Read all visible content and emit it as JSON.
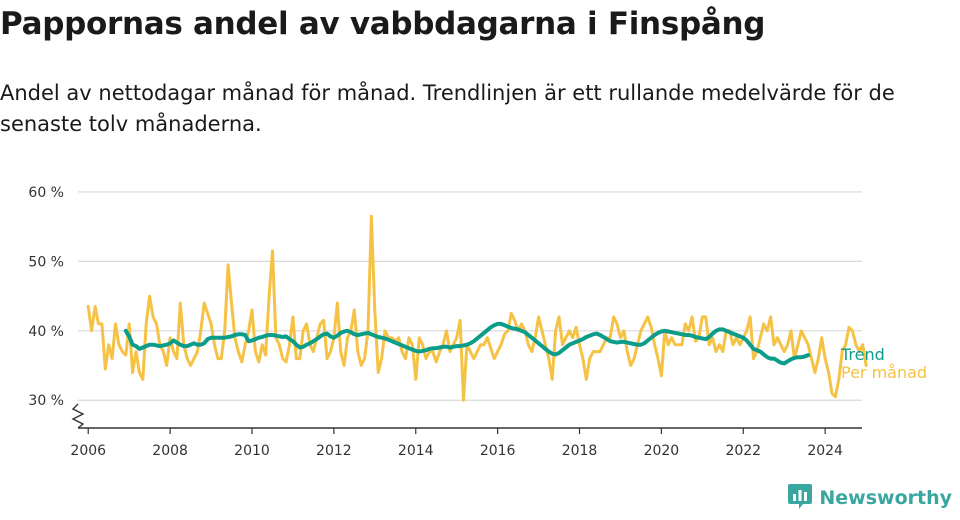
{
  "header": {
    "title": "Pappornas andel av vabbdagarna i Finspång",
    "subtitle": "Andel av nettodagar månad för månad. Trendlinjen är ett rullande medelvärde för de senaste tolv månaderna."
  },
  "brand": {
    "name": "Newsworthy",
    "icon": "newsworthy-logo-icon"
  },
  "colors": {
    "monthly": "#f6c245",
    "trend": "#0b9d8a",
    "grid": "#d9d9d9",
    "axis": "#333333"
  },
  "chart_data": {
    "type": "line",
    "xlabel": "",
    "ylabel": "",
    "ylim": [
      26,
      61
    ],
    "xlim": [
      2005.75,
      2024.9
    ],
    "yticks": [
      30,
      40,
      50,
      60
    ],
    "ytick_labels": [
      "30 %",
      "40 %",
      "50 %",
      "60 %"
    ],
    "xticks": [
      2006,
      2008,
      2010,
      2012,
      2014,
      2016,
      2018,
      2020,
      2022,
      2024
    ],
    "xtick_labels": [
      "2006",
      "2008",
      "2010",
      "2012",
      "2014",
      "2016",
      "2018",
      "2020",
      "2022",
      "2024"
    ],
    "grid": "horizontal",
    "axis_break": true,
    "series": [
      {
        "name": "Per månad",
        "x_start": "2006-01",
        "frequency": "monthly",
        "values": [
          43.5,
          40,
          43.5,
          41,
          41,
          34.5,
          38,
          36,
          41,
          38,
          37,
          36.5,
          41,
          34,
          37,
          34,
          33,
          41,
          45,
          42,
          41,
          38,
          37,
          35,
          39,
          37,
          36,
          44,
          38,
          36,
          35,
          36,
          37,
          40,
          44,
          42.5,
          41,
          38,
          36,
          36,
          40,
          49.5,
          44,
          39,
          37,
          35.5,
          38,
          40,
          43,
          37,
          35.5,
          38,
          36.5,
          45,
          51.5,
          39,
          38,
          36,
          35.5,
          38,
          42,
          36,
          36,
          40,
          41,
          38,
          37,
          39,
          41,
          41.5,
          36,
          37,
          39,
          44,
          37,
          35,
          39,
          40,
          43,
          37,
          35,
          36,
          40,
          56.5,
          43,
          34,
          36,
          40,
          39,
          39,
          38.5,
          39,
          37,
          36,
          39,
          38,
          33,
          39,
          38,
          36,
          37,
          37,
          35.5,
          37,
          38,
          40,
          37,
          38,
          39,
          41.5,
          30,
          38,
          37,
          36,
          37,
          38,
          38,
          39,
          37.5,
          36,
          37,
          38,
          39.5,
          40,
          42.5,
          41.5,
          40,
          41,
          40,
          38,
          37,
          39,
          42,
          40,
          38,
          36,
          33,
          40,
          42,
          38,
          39,
          40,
          39,
          40.5,
          38,
          36,
          33,
          36,
          37,
          37,
          37,
          38,
          39,
          39,
          42,
          41,
          39,
          40,
          37,
          35,
          36,
          38,
          40,
          41,
          42,
          40.5,
          38,
          36,
          33.5,
          40,
          38,
          39,
          38,
          38,
          38,
          41,
          40,
          42,
          38.5,
          39,
          42,
          42,
          38,
          39,
          37,
          38,
          37,
          40,
          40,
          38,
          39,
          38,
          39,
          40,
          42,
          36,
          37,
          39,
          41,
          40,
          42,
          38,
          39,
          38,
          37,
          38,
          40,
          36,
          38,
          40,
          39,
          38,
          36,
          34,
          36,
          39,
          36,
          34,
          31,
          30.5,
          33,
          37,
          38,
          40.5,
          40,
          38,
          37,
          38,
          35
        ]
      },
      {
        "name": "Trend",
        "x_start": "2006-12",
        "frequency": "monthly",
        "values": [
          40,
          39.2,
          38,
          37.8,
          37.4,
          37.6,
          37.8,
          38,
          38,
          37.9,
          37.8,
          37.9,
          38,
          38.2,
          38.6,
          38.3,
          38,
          37.8,
          37.8,
          38,
          38.2,
          38,
          38,
          38.2,
          38.8,
          39,
          39,
          39,
          39,
          39,
          39.1,
          39.2,
          39.4,
          39.5,
          39.5,
          39.4,
          38.5,
          38.6,
          38.8,
          39,
          39.1,
          39.3,
          39.4,
          39.4,
          39.3,
          39.2,
          39.1,
          39.2,
          38.8,
          38.5,
          38,
          37.6,
          37.7,
          38,
          38.2,
          38.5,
          38.8,
          39.2,
          39.5,
          39.6,
          39.2,
          39,
          39.3,
          39.7,
          39.9,
          40,
          39.8,
          39.5,
          39.4,
          39.5,
          39.6,
          39.7,
          39.5,
          39.3,
          39.1,
          39,
          38.9,
          38.7,
          38.5,
          38.3,
          38.1,
          37.9,
          37.7,
          37.5,
          37.3,
          37.1,
          37,
          37.1,
          37.2,
          37.4,
          37.5,
          37.5,
          37.6,
          37.7,
          37.7,
          37.6,
          37.7,
          37.8,
          37.8,
          37.9,
          38,
          38.2,
          38.5,
          38.9,
          39.3,
          39.7,
          40.1,
          40.5,
          40.8,
          41,
          41,
          40.8,
          40.6,
          40.4,
          40.3,
          40.2,
          40,
          39.8,
          39.4,
          39,
          38.6,
          38.2,
          37.8,
          37.4,
          37,
          36.7,
          36.6,
          36.8,
          37.2,
          37.6,
          38,
          38.2,
          38.4,
          38.6,
          38.8,
          39.1,
          39.3,
          39.5,
          39.6,
          39.4,
          39.1,
          38.8,
          38.5,
          38.4,
          38.3,
          38.4,
          38.4,
          38.3,
          38.2,
          38.1,
          38,
          38,
          38.2,
          38.6,
          39,
          39.4,
          39.7,
          39.9,
          40,
          39.9,
          39.8,
          39.7,
          39.6,
          39.5,
          39.4,
          39.4,
          39.3,
          39.1,
          39,
          38.9,
          38.8,
          39.1,
          39.6,
          40,
          40.2,
          40.2,
          40,
          39.8,
          39.6,
          39.4,
          39.2,
          39,
          38.6,
          38,
          37.4,
          37.2,
          37,
          36.6,
          36.2,
          36,
          36,
          35.7,
          35.4,
          35.3,
          35.6,
          35.9,
          36.1,
          36.2,
          36.2,
          36.3,
          36.5
        ]
      }
    ],
    "legend": [
      {
        "name": "Trend",
        "placement": "right"
      },
      {
        "name": "Per månad",
        "placement": "right"
      }
    ]
  }
}
